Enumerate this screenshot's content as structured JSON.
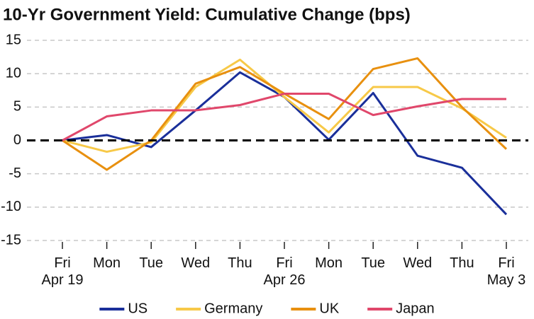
{
  "chart_data": {
    "type": "line",
    "title": "10-Yr Government Yield: Cumulative Change (bps)",
    "categories": [
      "Fri\nApr 19",
      "Mon",
      "Tue",
      "Wed",
      "Thu",
      "Fri\nApr 26",
      "Mon",
      "Tue",
      "Wed",
      "Thu",
      "Fri\nMay 3"
    ],
    "series": [
      {
        "name": "US",
        "color": "#1a2f9a",
        "values": [
          0,
          0.8,
          -1,
          4.5,
          10.2,
          6.5,
          0.1,
          7.1,
          -2.3,
          -4.1,
          -11.1
        ]
      },
      {
        "name": "Germany",
        "color": "#f7c948",
        "values": [
          0,
          -1.7,
          -0.3,
          8,
          12.1,
          6.5,
          1.2,
          8,
          8,
          4.8,
          0.4
        ]
      },
      {
        "name": "UK",
        "color": "#e8900f",
        "values": [
          0,
          -4.4,
          0,
          8.5,
          11,
          7,
          3.2,
          10.7,
          12.3,
          5,
          -1.3
        ]
      },
      {
        "name": "Japan",
        "color": "#e0476b",
        "values": [
          0,
          3.6,
          4.5,
          4.5,
          5.3,
          7,
          7,
          3.8,
          5.1,
          6.2,
          6.2
        ]
      }
    ],
    "ylim": [
      -15,
      15
    ],
    "yticks": [
      15,
      10,
      5,
      0,
      -5,
      -10,
      -15
    ],
    "grid": true,
    "zero_line": true,
    "legend": "bottom"
  }
}
